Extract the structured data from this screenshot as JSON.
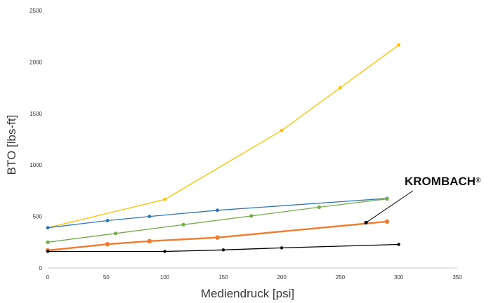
{
  "chart_data": {
    "type": "line",
    "xlabel": "Mediendruck [psi]",
    "ylabel": "BTO [lbs-ft]",
    "xlim": [
      0,
      350
    ],
    "ylim": [
      0,
      2500
    ],
    "x_ticks": [
      "0",
      "50",
      "100",
      "150",
      "200",
      "250",
      "300",
      "350"
    ],
    "y_ticks": [
      "0",
      "500",
      "1000",
      "1500",
      "2000",
      "2500"
    ],
    "grid": false,
    "legend": "none",
    "series": [
      {
        "color": "#FFC000",
        "line_width": 1.3,
        "marker_r": 2.4,
        "x": [
          0,
          100,
          200,
          250,
          300
        ],
        "y": [
          390,
          665,
          1335,
          1750,
          2165
        ]
      },
      {
        "color": "#2E75B6",
        "line_width": 1.3,
        "marker_r": 2.4,
        "x": [
          0,
          51,
          87,
          145,
          290
        ],
        "y": [
          390,
          460,
          500,
          560,
          675
        ]
      },
      {
        "color": "#70AD47",
        "line_width": 1.3,
        "marker_r": 2.6,
        "x": [
          0,
          58,
          116,
          174,
          232,
          290
        ],
        "y": [
          250,
          335,
          420,
          505,
          590,
          670
        ]
      },
      {
        "color": "#ED7D31",
        "line_width": 2.4,
        "marker_r": 3.2,
        "x": [
          0,
          51,
          87,
          145,
          290
        ],
        "y": [
          170,
          230,
          260,
          295,
          450
        ]
      },
      {
        "color": "#000000",
        "line_width": 1.3,
        "marker_r": 2.2,
        "x": [
          0,
          100,
          150,
          200,
          300
        ],
        "y": [
          160,
          160,
          175,
          195,
          228
        ]
      }
    ],
    "annotations": [
      {
        "text": "KROMBACH",
        "superscript": "®",
        "target": {
          "x": 272,
          "y": 440
        }
      }
    ]
  }
}
